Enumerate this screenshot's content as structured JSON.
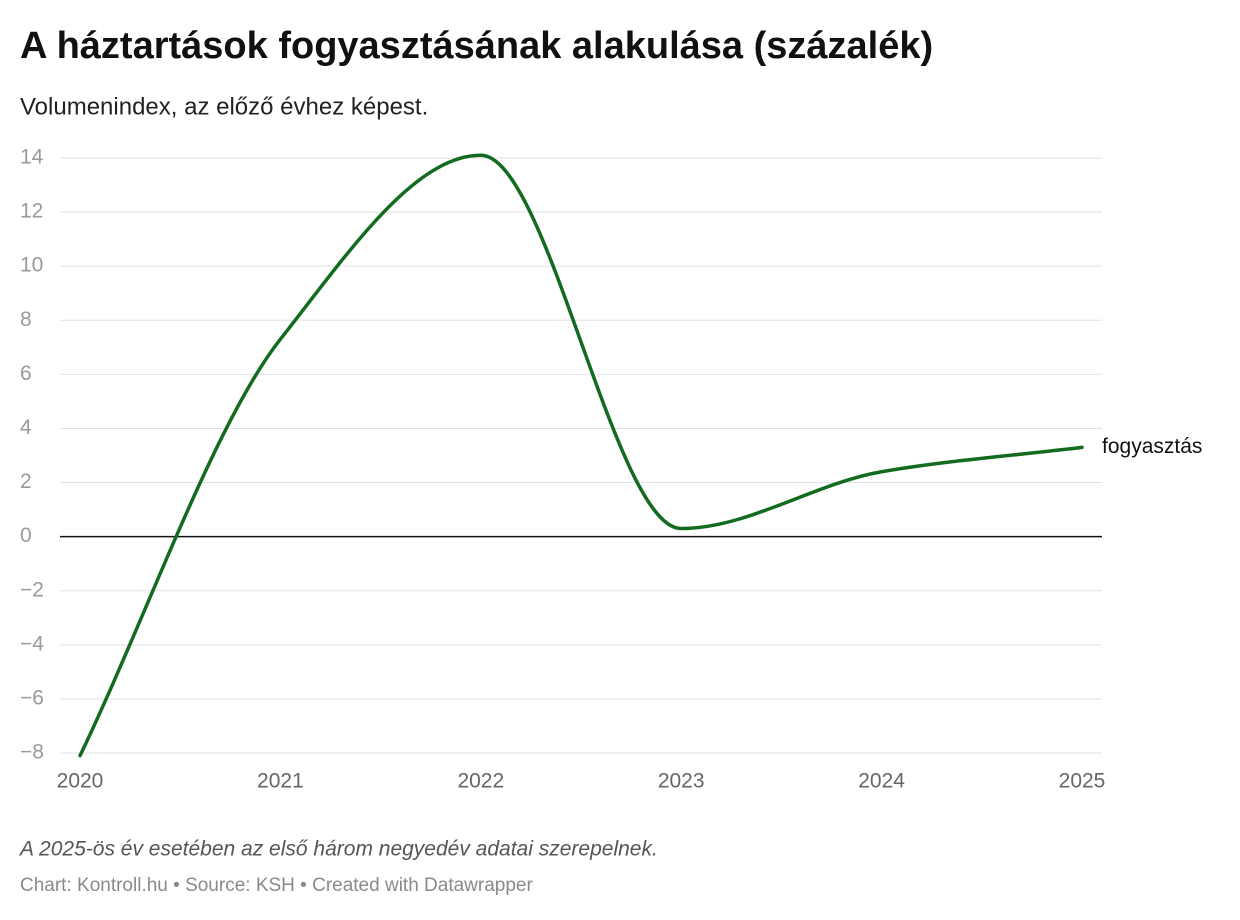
{
  "chart_data": {
    "type": "line",
    "title": "A háztartások fogyasztásának alakulása (százalék)",
    "subtitle": "Volumenindex, az előző évhez képest.",
    "note": "A 2025-ös év esetében az első három negyedév adatai szerepelnek.",
    "credit": "Chart: Kontroll.hu • Source: KSH • Created with Datawrapper",
    "x": [
      2020,
      2021,
      2022,
      2023,
      2024,
      2025
    ],
    "series": [
      {
        "name": "fogyasztás",
        "color": "#126b1f",
        "values": [
          -8.1,
          7.3,
          14.1,
          0.3,
          2.4,
          3.3
        ]
      }
    ],
    "xlim": [
      2020,
      2025
    ],
    "xticks": [
      2020,
      2021,
      2022,
      2023,
      2024,
      2025
    ],
    "ylim": [
      -8,
      14
    ],
    "yticks": [
      {
        "value": -8,
        "label": "−8"
      },
      {
        "value": -6,
        "label": "−6"
      },
      {
        "value": -4,
        "label": "−4"
      },
      {
        "value": -2,
        "label": "−2"
      },
      0,
      2,
      4,
      6,
      8,
      10,
      12,
      14
    ],
    "grid": true
  }
}
